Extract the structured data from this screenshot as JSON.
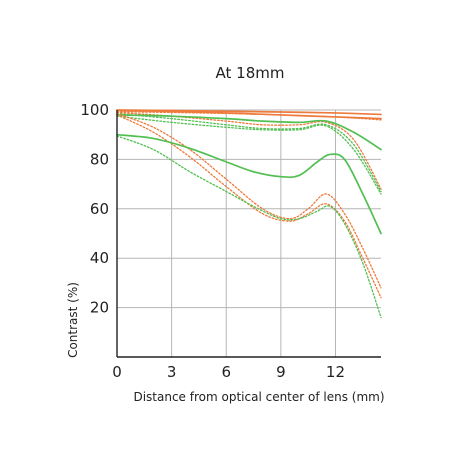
{
  "chart_data": {
    "type": "line",
    "title": "At 18mm",
    "xlabel": "Distance from optical center of lens (mm)",
    "ylabel": "Contrast (%)",
    "xlim": [
      0,
      14.5
    ],
    "ylim": [
      0,
      100
    ],
    "xticks": [
      0,
      3,
      6,
      9,
      12
    ],
    "yticks": [
      20,
      40,
      60,
      80,
      100
    ],
    "grid": true,
    "legend": "none",
    "colors": {
      "orange": "#ee7a3c",
      "green": "#52bf52"
    },
    "series": [
      {
        "color": "orange",
        "dash": "solid",
        "x": [
          0,
          3,
          6,
          9,
          12,
          14.5
        ],
        "y": [
          100,
          99.8,
          99.5,
          99.2,
          98.8,
          98.2
        ]
      },
      {
        "color": "orange",
        "dash": "solid",
        "x": [
          0,
          3,
          6,
          9,
          12,
          14.5
        ],
        "y": [
          99.8,
          99.4,
          98.8,
          98.0,
          97.2,
          96.5
        ]
      },
      {
        "color": "orange",
        "dash": "dotted",
        "x": [
          0,
          3,
          6,
          9,
          12,
          14.5
        ],
        "y": [
          99.3,
          99.0,
          98.6,
          98.0,
          97.2,
          96.0
        ]
      },
      {
        "color": "orange",
        "dash": "dotted",
        "x": [
          0,
          3,
          6,
          8,
          10,
          11.5,
          13,
          14.5
        ],
        "y": [
          99,
          97.5,
          95.5,
          94,
          94,
          95,
          88,
          68
        ]
      },
      {
        "color": "green",
        "dash": "solid",
        "x": [
          0,
          3,
          6,
          8,
          10,
          11.5,
          13,
          14.5
        ],
        "y": [
          98,
          97.5,
          96.5,
          95.5,
          95,
          95.5,
          91,
          84
        ]
      },
      {
        "color": "green",
        "dash": "dotted",
        "x": [
          0,
          3,
          6,
          8,
          10,
          11.5,
          13,
          14.5
        ],
        "y": [
          98.5,
          96.5,
          94,
          92.5,
          92.5,
          94,
          86,
          67
        ]
      },
      {
        "color": "green",
        "dash": "dotted",
        "x": [
          0,
          3,
          6,
          8,
          10,
          11.5,
          13,
          14.5
        ],
        "y": [
          97.5,
          95,
          93,
          92,
          92,
          93.5,
          84,
          66
        ]
      },
      {
        "color": "orange",
        "dash": "dotted",
        "x": [
          0,
          2,
          4,
          6,
          8,
          9.5,
          10.5,
          11.5,
          12.5,
          13.5,
          14.5
        ],
        "y": [
          98.5,
          93,
          84,
          72,
          60,
          56,
          60,
          66,
          58,
          44,
          28
        ]
      },
      {
        "color": "orange",
        "dash": "dotted",
        "x": [
          0,
          2,
          4,
          6,
          8,
          9.5,
          10.5,
          11.5,
          12.5,
          13.5,
          14.5
        ],
        "y": [
          98,
          91,
          81,
          69,
          58,
          55,
          58,
          62,
          55,
          40,
          24
        ]
      },
      {
        "color": "green",
        "dash": "solid",
        "x": [
          0,
          2,
          4,
          6,
          7.5,
          9,
          10,
          11,
          11.7,
          12.5,
          13.5,
          14.5
        ],
        "y": [
          90,
          88.5,
          84.5,
          79,
          75,
          73,
          73.5,
          79,
          82,
          80,
          66,
          50
        ]
      },
      {
        "color": "green",
        "dash": "dotted",
        "x": [
          0,
          2,
          4,
          6,
          7.5,
          9,
          10,
          11,
          11.7,
          12.5,
          13.5,
          14.5
        ],
        "y": [
          89.5,
          84,
          75,
          67,
          61,
          56,
          56,
          59,
          61,
          54,
          38,
          16
        ]
      }
    ]
  }
}
